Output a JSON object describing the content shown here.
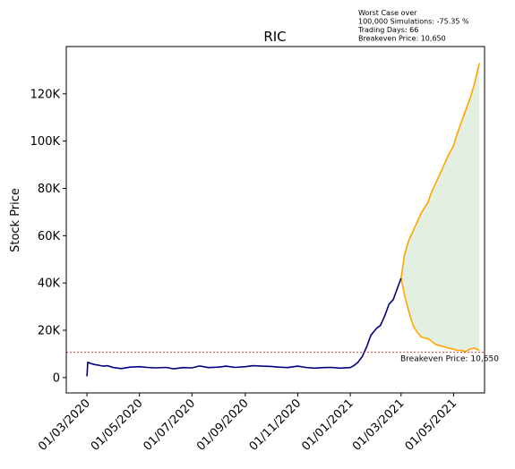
{
  "chart_data": {
    "type": "line",
    "title": "RIC",
    "ylabel": "Stock Price",
    "xlabel": "",
    "ylim": [
      -6500,
      140000
    ],
    "xlim": [
      "2020-02-06",
      "2021-06-06"
    ],
    "grid": false,
    "y_ticks": [
      0,
      20000,
      40000,
      60000,
      80000,
      100000,
      120000
    ],
    "y_tick_labels": [
      "0",
      "20K",
      "40K",
      "60K",
      "80K",
      "100K",
      "120K"
    ],
    "x_ticks": [
      "2020-03-01",
      "2020-05-01",
      "2020-07-01",
      "2020-09-01",
      "2020-11-01",
      "2021-01-01",
      "2021-03-01",
      "2021-05-01"
    ],
    "x_tick_labels": [
      "01/03/2020",
      "01/05/2020",
      "01/07/2020",
      "01/09/2020",
      "01/11/2020",
      "01/01/2021",
      "01/03/2021",
      "01/05/2021"
    ],
    "annotation_lines": [
      "Worst Case over",
      "100,000 Simulations: -75.35 %",
      "Trading Days: 66",
      "Breakeven Price: 10,650"
    ],
    "breakeven": {
      "value": 10650,
      "label": "Breakeven Price: 10,650",
      "color": "#d62728"
    },
    "colors": {
      "history": "#000080",
      "simulation": "#ffa500",
      "fill": "#e3efe1"
    },
    "series": [
      {
        "role": "history",
        "x": [
          "2020-03-01",
          "2020-03-02",
          "2020-03-05",
          "2020-03-10",
          "2020-03-15",
          "2020-03-20",
          "2020-03-25",
          "2020-04-01",
          "2020-04-10",
          "2020-04-20",
          "2020-05-01",
          "2020-05-10",
          "2020-05-20",
          "2020-06-01",
          "2020-06-10",
          "2020-06-20",
          "2020-07-01",
          "2020-07-10",
          "2020-07-20",
          "2020-08-01",
          "2020-08-10",
          "2020-08-20",
          "2020-09-01",
          "2020-09-10",
          "2020-09-20",
          "2020-10-01",
          "2020-10-10",
          "2020-10-20",
          "2020-11-01",
          "2020-11-10",
          "2020-11-20",
          "2020-12-01",
          "2020-12-10",
          "2020-12-20",
          "2021-01-01",
          "2021-01-05",
          "2021-01-10",
          "2021-01-15",
          "2021-01-20",
          "2021-01-25",
          "2021-02-01",
          "2021-02-05",
          "2021-02-10",
          "2021-02-15",
          "2021-02-20",
          "2021-02-25",
          "2021-03-01"
        ],
        "y": [
          500,
          6500,
          6000,
          5500,
          5200,
          4800,
          5000,
          4200,
          3800,
          4400,
          4600,
          4300,
          4100,
          4300,
          3700,
          4200,
          4100,
          4900,
          4200,
          4400,
          4800,
          4300,
          4600,
          5000,
          4800,
          4700,
          4400,
          4200,
          4800,
          4300,
          4000,
          4200,
          4300,
          4000,
          4200,
          5000,
          6500,
          9000,
          13000,
          18000,
          21000,
          22000,
          26000,
          31000,
          33000,
          38000,
          42000
        ]
      },
      {
        "role": "best-case simulation",
        "x": [
          "2021-03-01",
          "2021-03-05",
          "2021-03-10",
          "2021-03-15",
          "2021-03-20",
          "2021-03-25",
          "2021-04-01",
          "2021-04-05",
          "2021-04-10",
          "2021-04-15",
          "2021-04-20",
          "2021-04-25",
          "2021-05-01",
          "2021-05-05",
          "2021-05-10",
          "2021-05-15",
          "2021-05-20",
          "2021-05-25",
          "2021-05-31"
        ],
        "y": [
          42000,
          52000,
          58000,
          62000,
          66000,
          70000,
          74000,
          78000,
          82000,
          86000,
          90000,
          94000,
          98000,
          103000,
          108000,
          113000,
          118000,
          124000,
          133000
        ]
      },
      {
        "role": "worst-case simulation",
        "x": [
          "2021-03-01",
          "2021-03-05",
          "2021-03-10",
          "2021-03-15",
          "2021-03-20",
          "2021-03-25",
          "2021-04-01",
          "2021-04-05",
          "2021-04-10",
          "2021-04-15",
          "2021-04-20",
          "2021-04-25",
          "2021-05-01",
          "2021-05-05",
          "2021-05-10",
          "2021-05-15",
          "2021-05-20",
          "2021-05-25",
          "2021-05-31"
        ],
        "y": [
          42000,
          35000,
          28000,
          22000,
          19000,
          17000,
          16500,
          15500,
          14000,
          13500,
          13000,
          12500,
          12000,
          11500,
          11500,
          11000,
          12000,
          12500,
          11500
        ]
      }
    ]
  }
}
